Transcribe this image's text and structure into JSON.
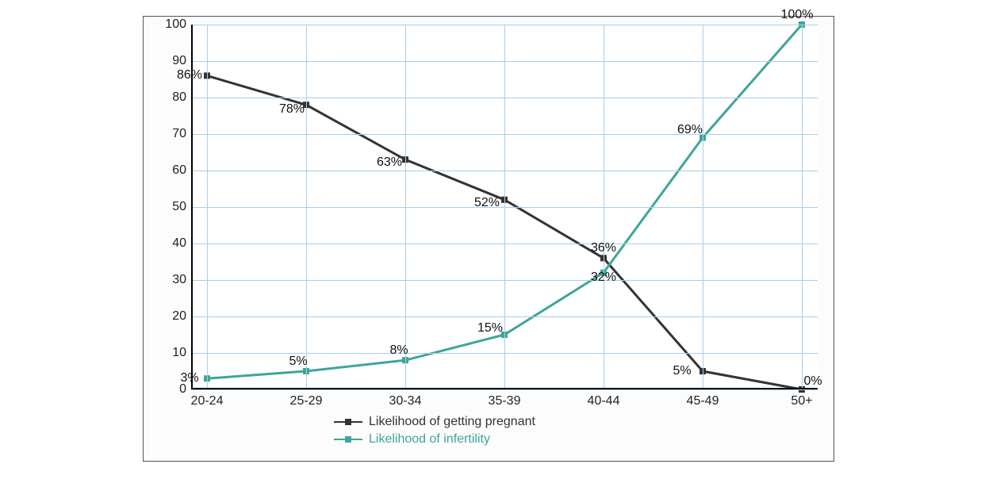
{
  "chart": {
    "type": "line",
    "background_color": "#ffffff",
    "grid_color": "#a8cfe8",
    "axis_color": "#000000",
    "ylim": [
      0,
      100
    ],
    "ytick_step": 10,
    "categories": [
      "20-24",
      "25-29",
      "30-34",
      "35-39",
      "40-44",
      "45-49",
      "50+"
    ],
    "series": [
      {
        "name": "Likelihood of getting pregnant",
        "color": "#333333",
        "line_width": 3,
        "marker": "square",
        "marker_size": 8,
        "values": [
          86,
          78,
          63,
          52,
          36,
          5,
          0
        ],
        "labels": [
          "86%",
          "78%",
          "63%",
          "52%",
          "36%",
          "5%",
          "0%"
        ],
        "label_offsets": [
          [
            -22,
            0
          ],
          [
            -18,
            6
          ],
          [
            -20,
            4
          ],
          [
            -22,
            4
          ],
          [
            0,
            -12
          ],
          [
            -26,
            0
          ],
          [
            14,
            -10
          ]
        ]
      },
      {
        "name": "Likelihood of infertility",
        "color": "#3fa59a",
        "line_width": 3,
        "marker": "square",
        "marker_size": 8,
        "values": [
          3,
          5,
          8,
          15,
          32,
          69,
          100
        ],
        "labels": [
          "3%",
          "5%",
          "8%",
          "15%",
          "32%",
          "69%",
          "100%"
        ],
        "label_offsets": [
          [
            -22,
            0
          ],
          [
            -10,
            -12
          ],
          [
            -8,
            -12
          ],
          [
            -18,
            -8
          ],
          [
            0,
            6
          ],
          [
            -16,
            -10
          ],
          [
            -6,
            -12
          ]
        ]
      }
    ],
    "label_fontsize": 16,
    "tick_fontsize": 16,
    "legend_fontsize": 16,
    "legend_text_colors": [
      "#333333",
      "#3fa59a"
    ]
  }
}
